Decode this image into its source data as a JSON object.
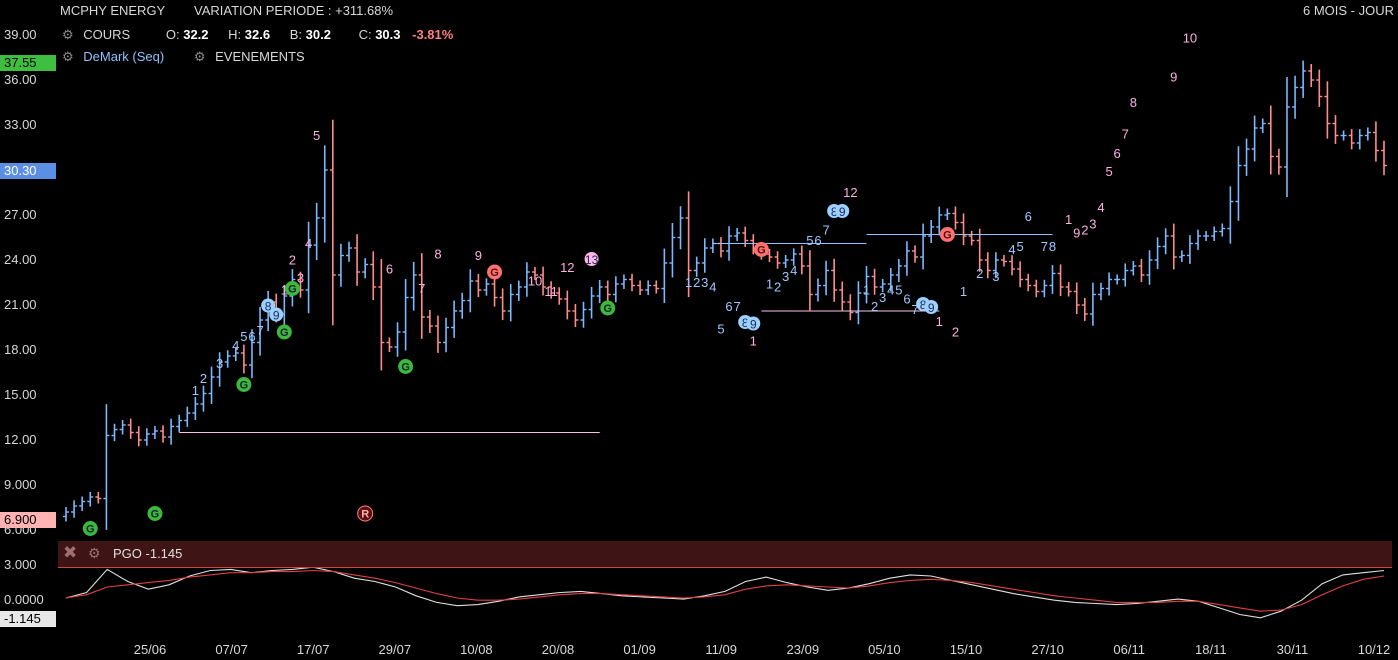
{
  "header": {
    "instrument": "MCPHY ENERGY",
    "variation": "VARIATION PERIODE : +311.68%",
    "period": "6 MOIS - JOUR",
    "cours_label": "COURS",
    "open_label": "O:",
    "open": "32.2",
    "high_label": "H:",
    "high": "32.6",
    "low_label": "B:",
    "low": "30.2",
    "close_label": "C:",
    "close": "30.3",
    "change": "-3.81%",
    "demark_label": "DeMark (Seq)",
    "events_label": "EVENEMENTS"
  },
  "price_tags": {
    "top": "37.55",
    "current": "30.30",
    "bottom": "6.900",
    "colors": {
      "top": "#3fbf3f",
      "current": "#5b8fe6",
      "bottom": "#ffb3b3"
    }
  },
  "pgo": {
    "label": "PGO -1.145",
    "tag": "-1.145",
    "axis": [
      "3.000",
      "0.0000"
    ]
  },
  "colors": {
    "up": "#7ab8ff",
    "down": "#ff8c8c",
    "seq_up": "#a0c8ff",
    "seq_down": "#ffb0e0",
    "event_g": "#3db83d",
    "event_r": "#ff7070"
  },
  "chart_data": {
    "type": "ohlc",
    "y_ticks": [
      39.0,
      36.0,
      33.0,
      30.0,
      27.0,
      24.0,
      21.0,
      18.0,
      15.0,
      12.0,
      9.0,
      6.0
    ],
    "y_tick_labels": [
      "39.00",
      "36.00",
      "33.00",
      "30.00",
      "27.00",
      "24.00",
      "21.00",
      "18.00",
      "15.00",
      "12.00",
      "9.000",
      "6.000"
    ],
    "x_labels": [
      "25/06",
      "07/07",
      "17/07",
      "29/07",
      "10/08",
      "20/08",
      "01/09",
      "11/09",
      "23/09",
      "05/10",
      "15/10",
      "27/10",
      "06/11",
      "18/11",
      "30/11",
      "10/12"
    ],
    "closes": [
      7.2,
      7.6,
      7.9,
      8.2,
      8.1,
      12.3,
      12.7,
      13.0,
      12.5,
      12.0,
      12.4,
      12.6,
      12.2,
      12.9,
      13.3,
      13.8,
      14.4,
      15.1,
      16.2,
      17.2,
      17.6,
      17.8,
      17.0,
      18.5,
      20.0,
      21.2,
      20.4,
      21.6,
      22.7,
      22.0,
      25.0,
      26.8,
      30.0,
      23.0,
      24.3,
      24.8,
      23.2,
      23.7,
      22.2,
      18.5,
      18.2,
      19.2,
      21.5,
      23.0,
      20.2,
      19.6,
      18.5,
      19.5,
      20.6,
      21.3,
      22.6,
      22.0,
      22.4,
      21.5,
      20.6,
      21.7,
      22.2,
      23.2,
      23.0,
      22.2,
      21.8,
      21.4,
      20.6,
      20.0,
      20.7,
      21.6,
      22.2,
      21.7,
      22.4,
      22.7,
      22.3,
      22.0,
      22.3,
      22.1,
      23.8,
      25.5,
      26.8,
      23.3,
      23.8,
      24.8,
      25.1,
      24.6,
      25.6,
      25.8,
      25.3,
      24.8,
      24.4,
      24.2,
      23.8,
      24.0,
      24.4,
      23.6,
      21.7,
      22.3,
      23.3,
      22.0,
      21.2,
      20.5,
      21.8,
      22.9,
      22.2,
      22.4,
      23.0,
      23.6,
      24.6,
      24.2,
      25.6,
      26.2,
      27.0,
      27.1,
      26.5,
      25.6,
      25.3,
      24.0,
      23.3,
      24.0,
      23.9,
      23.4,
      22.7,
      22.3,
      21.9,
      22.3,
      23.1,
      22.2,
      21.9,
      21.0,
      20.4,
      21.7,
      22.1,
      22.7,
      22.7,
      23.3,
      23.6,
      23.0,
      24.0,
      24.9,
      25.6,
      24.2,
      24.3,
      25.1,
      25.6,
      25.6,
      25.9,
      26.1,
      27.9,
      30.3,
      31.4,
      32.8,
      33.1,
      30.9,
      30.2,
      34.2,
      35.5,
      36.6,
      36.0,
      34.9,
      33.1,
      32.3,
      32.3,
      31.8,
      32.3,
      32.5,
      31.3,
      30.3
    ],
    "pgo_line": [
      0.0,
      0.5,
      2.6,
      1.5,
      0.8,
      1.2,
      2.0,
      2.5,
      2.6,
      2.3,
      2.5,
      2.6,
      2.8,
      2.4,
      1.8,
      1.5,
      1.0,
      0.2,
      -0.4,
      -0.7,
      -0.6,
      -0.3,
      0.1,
      0.3,
      0.5,
      0.6,
      0.4,
      0.2,
      0.1,
      0.0,
      -0.1,
      0.2,
      0.6,
      1.5,
      1.9,
      1.4,
      1.0,
      0.7,
      0.9,
      1.3,
      1.8,
      2.1,
      2.0,
      1.6,
      1.2,
      0.8,
      0.4,
      0.1,
      -0.2,
      -0.4,
      -0.5,
      -0.6,
      -0.5,
      -0.3,
      -0.1,
      -0.3,
      -0.9,
      -1.5,
      -1.8,
      -1.2,
      -0.2,
      1.3,
      2.1,
      2.3,
      2.5
    ],
    "pgo_signal": [
      0.0,
      0.3,
      1.0,
      1.2,
      1.4,
      1.6,
      1.9,
      2.1,
      2.3,
      2.3,
      2.4,
      2.4,
      2.5,
      2.4,
      2.1,
      1.8,
      1.4,
      0.9,
      0.4,
      0.0,
      -0.2,
      -0.2,
      -0.1,
      0.1,
      0.3,
      0.4,
      0.4,
      0.3,
      0.2,
      0.1,
      0.0,
      0.1,
      0.3,
      0.8,
      1.1,
      1.2,
      1.1,
      1.0,
      0.9,
      1.1,
      1.4,
      1.6,
      1.7,
      1.6,
      1.4,
      1.1,
      0.8,
      0.5,
      0.2,
      0.0,
      -0.2,
      -0.4,
      -0.4,
      -0.4,
      -0.3,
      -0.3,
      -0.6,
      -0.9,
      -1.2,
      -1.1,
      -0.6,
      0.3,
      1.1,
      1.7,
      2.0
    ],
    "demark_labels": [
      {
        "t": "1",
        "i": 16,
        "p": 15.0,
        "k": "up"
      },
      {
        "t": "2",
        "i": 17,
        "p": 15.8,
        "k": "up"
      },
      {
        "t": "3",
        "i": 19,
        "p": 16.8,
        "k": "up"
      },
      {
        "t": "4",
        "i": 21,
        "p": 18.0,
        "k": "up"
      },
      {
        "t": "5",
        "i": 22,
        "p": 18.6,
        "k": "up"
      },
      {
        "t": "6",
        "i": 23,
        "p": 18.6,
        "k": "up"
      },
      {
        "t": "7",
        "i": 24,
        "p": 19.0,
        "k": "up"
      },
      {
        "t": "8",
        "i": 25,
        "p": 20.7,
        "k": "upc"
      },
      {
        "t": "9",
        "i": 26,
        "p": 20.1,
        "k": "upc"
      },
      {
        "t": "1",
        "i": 27,
        "p": 21.7,
        "k": "dn"
      },
      {
        "t": "2",
        "i": 28,
        "p": 23.7,
        "k": "dn"
      },
      {
        "t": "3",
        "i": 29,
        "p": 22.5,
        "k": "dn"
      },
      {
        "t": "4",
        "i": 30,
        "p": 24.8,
        "k": "dn"
      },
      {
        "t": "5",
        "i": 31,
        "p": 32.0,
        "k": "dn"
      },
      {
        "t": "6",
        "i": 40,
        "p": 23.1,
        "k": "dn"
      },
      {
        "t": "7",
        "i": 44,
        "p": 21.8,
        "k": "dn"
      },
      {
        "t": "8",
        "i": 46,
        "p": 24.1,
        "k": "dn"
      },
      {
        "t": "9",
        "i": 51,
        "p": 24.0,
        "k": "dn"
      },
      {
        "t": "10",
        "i": 58,
        "p": 22.3,
        "k": "dn"
      },
      {
        "t": "11",
        "i": 60,
        "p": 21.6,
        "k": "dn"
      },
      {
        "t": "12",
        "i": 62,
        "p": 23.2,
        "k": "dn"
      },
      {
        "t": "13",
        "i": 65,
        "p": 23.8,
        "k": "dnc"
      },
      {
        "t": "1",
        "i": 77,
        "p": 22.2,
        "k": "up"
      },
      {
        "t": "2",
        "i": 78,
        "p": 22.2,
        "k": "up"
      },
      {
        "t": "3",
        "i": 79,
        "p": 22.2,
        "k": "up"
      },
      {
        "t": "4",
        "i": 80,
        "p": 21.9,
        "k": "up"
      },
      {
        "t": "5",
        "i": 81,
        "p": 19.1,
        "k": "up"
      },
      {
        "t": "6",
        "i": 82,
        "p": 20.6,
        "k": "up"
      },
      {
        "t": "7",
        "i": 83,
        "p": 20.6,
        "k": "up"
      },
      {
        "t": "8",
        "i": 84,
        "p": 19.6,
        "k": "upc"
      },
      {
        "t": "9",
        "i": 85,
        "p": 19.5,
        "k": "upc"
      },
      {
        "t": "1",
        "i": 85,
        "p": 18.3,
        "k": "dn"
      },
      {
        "t": "1",
        "i": 87,
        "p": 22.1,
        "k": "up"
      },
      {
        "t": "2",
        "i": 88,
        "p": 21.9,
        "k": "up"
      },
      {
        "t": "3",
        "i": 89,
        "p": 22.6,
        "k": "up"
      },
      {
        "t": "4",
        "i": 90,
        "p": 23.0,
        "k": "up"
      },
      {
        "t": "5",
        "i": 92,
        "p": 25.0,
        "k": "up"
      },
      {
        "t": "6",
        "i": 93,
        "p": 25.0,
        "k": "up"
      },
      {
        "t": "7",
        "i": 94,
        "p": 25.7,
        "k": "up"
      },
      {
        "t": "8",
        "i": 95,
        "p": 27.0,
        "k": "upc"
      },
      {
        "t": "9",
        "i": 96,
        "p": 27.0,
        "k": "upc"
      },
      {
        "t": "12",
        "i": 97,
        "p": 28.2,
        "k": "dn"
      },
      {
        "t": "1",
        "i": 99,
        "p": 21.7,
        "k": "up"
      },
      {
        "t": "2",
        "i": 100,
        "p": 20.6,
        "k": "up"
      },
      {
        "t": "3",
        "i": 101,
        "p": 21.2,
        "k": "up"
      },
      {
        "t": "4",
        "i": 102,
        "p": 21.7,
        "k": "up"
      },
      {
        "t": "5",
        "i": 103,
        "p": 21.7,
        "k": "up"
      },
      {
        "t": "6",
        "i": 104,
        "p": 21.1,
        "k": "up"
      },
      {
        "t": "7",
        "i": 105,
        "p": 20.4,
        "k": "up"
      },
      {
        "t": "8",
        "i": 106,
        "p": 20.8,
        "k": "upc"
      },
      {
        "t": "9",
        "i": 107,
        "p": 20.6,
        "k": "upc"
      },
      {
        "t": "1",
        "i": 108,
        "p": 19.6,
        "k": "dn"
      },
      {
        "t": "2",
        "i": 110,
        "p": 18.9,
        "k": "dn"
      },
      {
        "t": "1",
        "i": 111,
        "p": 21.6,
        "k": "up"
      },
      {
        "t": "2",
        "i": 113,
        "p": 22.8,
        "k": "up"
      },
      {
        "t": "3",
        "i": 115,
        "p": 22.6,
        "k": "up"
      },
      {
        "t": "4",
        "i": 117,
        "p": 24.4,
        "k": "up"
      },
      {
        "t": "5",
        "i": 118,
        "p": 24.6,
        "k": "up"
      },
      {
        "t": "6",
        "i": 119,
        "p": 26.6,
        "k": "up"
      },
      {
        "t": "7",
        "i": 121,
        "p": 24.6,
        "k": "up"
      },
      {
        "t": "8",
        "i": 122,
        "p": 24.6,
        "k": "up"
      },
      {
        "t": "1",
        "i": 124,
        "p": 26.4,
        "k": "dn"
      },
      {
        "t": "9",
        "i": 125,
        "p": 25.5,
        "k": "dn"
      },
      {
        "t": "2",
        "i": 126,
        "p": 25.7,
        "k": "dn"
      },
      {
        "t": "3",
        "i": 127,
        "p": 26.1,
        "k": "dn"
      },
      {
        "t": "4",
        "i": 128,
        "p": 27.2,
        "k": "dn"
      },
      {
        "t": "5",
        "i": 129,
        "p": 29.6,
        "k": "dn"
      },
      {
        "t": "6",
        "i": 130,
        "p": 30.8,
        "k": "dn"
      },
      {
        "t": "7",
        "i": 131,
        "p": 32.1,
        "k": "dn"
      },
      {
        "t": "8",
        "i": 132,
        "p": 34.2,
        "k": "dn"
      },
      {
        "t": "9",
        "i": 137,
        "p": 35.9,
        "k": "dn"
      },
      {
        "t": "10",
        "i": 139,
        "p": 38.5,
        "k": "dn"
      }
    ],
    "events": [
      {
        "t": "G",
        "i": 3,
        "p": 6.1,
        "k": "g"
      },
      {
        "t": "G",
        "i": 11,
        "p": 7.1,
        "k": "g"
      },
      {
        "t": "G",
        "i": 22,
        "p": 15.7,
        "k": "g"
      },
      {
        "t": "G",
        "i": 27,
        "p": 19.2,
        "k": "g"
      },
      {
        "t": "G",
        "i": 28,
        "p": 22.1,
        "k": "g"
      },
      {
        "t": "G",
        "i": 42,
        "p": 16.9,
        "k": "g"
      },
      {
        "t": "G",
        "i": 67,
        "p": 20.8,
        "k": "g"
      },
      {
        "t": "G",
        "i": 53,
        "p": 23.2,
        "k": "r"
      },
      {
        "t": "G",
        "i": 86,
        "p": 24.7,
        "k": "r"
      },
      {
        "t": "G",
        "i": 109,
        "p": 25.7,
        "k": "r"
      },
      {
        "t": "R",
        "i": 37,
        "p": 7.1,
        "k": "rr"
      }
    ],
    "levels": [
      {
        "i0": 14,
        "i1": 66,
        "p": 12.5,
        "c": "#ffc0e8"
      },
      {
        "i0": 80,
        "i1": 99,
        "p": 25.1,
        "c": "#8fc2ff"
      },
      {
        "i0": 86,
        "i1": 108,
        "p": 20.6,
        "c": "#ffc0e8"
      },
      {
        "i0": 99,
        "i1": 122,
        "p": 25.7,
        "c": "#8fc2ff"
      }
    ]
  }
}
